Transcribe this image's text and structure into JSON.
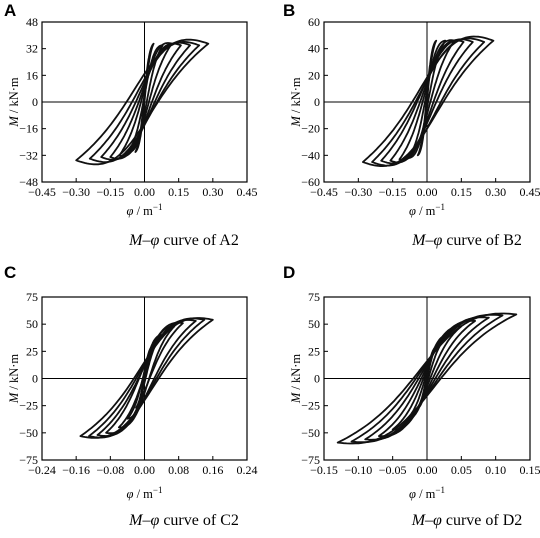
{
  "chart_data": [
    {
      "panel": "A",
      "type": "line",
      "caption": {
        "m": "M",
        "dash": "–",
        "phi": "φ",
        "text": " curve of A2"
      },
      "xlabel": {
        "sym": "φ",
        "unit": " / m",
        "sup": "−1"
      },
      "ylabel": {
        "sym": "M",
        "unit": " / kN·m"
      },
      "xlim": [
        -0.45,
        0.45
      ],
      "ylim": [
        -48,
        48
      ],
      "xticks": [
        -0.45,
        -0.3,
        -0.15,
        0.0,
        0.15,
        0.3,
        0.45
      ],
      "xtick_labels": [
        "−0.45",
        "−0.30",
        "−0.15",
        "0.00",
        "0.15",
        "0.30",
        "0.45"
      ],
      "yticks": [
        48,
        32,
        16,
        0,
        -16,
        -32,
        -48
      ],
      "ytick_labels": [
        "48",
        "32",
        "16",
        "0",
        "−16",
        "−32",
        "−48"
      ],
      "loops": [
        {
          "phi_max": 0.04,
          "phi_min": -0.04,
          "m_max": 35,
          "m_min": -30,
          "width": 4
        },
        {
          "phi_max": 0.08,
          "phi_min": -0.07,
          "m_max": 34,
          "m_min": -30,
          "width": 10
        },
        {
          "phi_max": 0.12,
          "phi_min": -0.11,
          "m_max": 35,
          "m_min": -32,
          "width": 16
        },
        {
          "phi_max": 0.16,
          "phi_min": -0.15,
          "m_max": 34,
          "m_min": -33,
          "width": 20
        },
        {
          "phi_max": 0.2,
          "phi_min": -0.19,
          "m_max": 34,
          "m_min": -33,
          "width": 23
        },
        {
          "phi_max": 0.24,
          "phi_min": -0.24,
          "m_max": 34,
          "m_min": -34,
          "width": 25
        },
        {
          "phi_max": 0.28,
          "phi_min": -0.3,
          "m_max": 35,
          "m_min": -35,
          "width": 27
        }
      ]
    },
    {
      "panel": "B",
      "type": "line",
      "caption": {
        "m": "M",
        "dash": "–",
        "phi": "φ",
        "text": " curve of B2"
      },
      "xlabel": {
        "sym": "φ",
        "unit": " / m",
        "sup": "−1"
      },
      "ylabel": {
        "sym": "M",
        "unit": " / kN·m"
      },
      "xlim": [
        -0.45,
        0.45
      ],
      "ylim": [
        -60,
        60
      ],
      "xticks": [
        -0.45,
        -0.3,
        -0.15,
        0.0,
        0.15,
        0.3,
        0.45
      ],
      "xtick_labels": [
        "−0.45",
        "−0.30",
        "−0.15",
        "0.00",
        "0.15",
        "0.30",
        "0.45"
      ],
      "yticks": [
        60,
        40,
        20,
        0,
        -20,
        -40,
        -60
      ],
      "ytick_labels": [
        "60",
        "40",
        "20",
        "0",
        "−20",
        "−40",
        "−60"
      ],
      "loops": [
        {
          "phi_max": 0.04,
          "phi_min": -0.04,
          "m_max": 46,
          "m_min": -40,
          "width": 5
        },
        {
          "phi_max": 0.08,
          "phi_min": -0.08,
          "m_max": 46,
          "m_min": -42,
          "width": 12
        },
        {
          "phi_max": 0.12,
          "phi_min": -0.12,
          "m_max": 46,
          "m_min": -43,
          "width": 20
        },
        {
          "phi_max": 0.16,
          "phi_min": -0.16,
          "m_max": 45,
          "m_min": -44,
          "width": 26
        },
        {
          "phi_max": 0.2,
          "phi_min": -0.2,
          "m_max": 45,
          "m_min": -44,
          "width": 30
        },
        {
          "phi_max": 0.25,
          "phi_min": -0.24,
          "m_max": 45,
          "m_min": -45,
          "width": 33
        },
        {
          "phi_max": 0.29,
          "phi_min": -0.28,
          "m_max": 46,
          "m_min": -45,
          "width": 35
        }
      ]
    },
    {
      "panel": "C",
      "type": "line",
      "caption": {
        "m": "M",
        "dash": "–",
        "phi": "φ",
        "text": " curve of C2"
      },
      "xlabel": {
        "sym": "φ",
        "unit": " / m",
        "sup": "−1"
      },
      "ylabel": {
        "sym": "M",
        "unit": " / kN·m"
      },
      "xlim": [
        -0.24,
        0.24
      ],
      "ylim": [
        -75,
        75
      ],
      "xticks": [
        -0.24,
        -0.16,
        -0.08,
        0.0,
        0.08,
        0.16,
        0.24
      ],
      "xtick_labels": [
        "−0.24",
        "−0.16",
        "−0.08",
        "0.00",
        "0.08",
        "0.16",
        "0.24"
      ],
      "yticks": [
        75,
        50,
        25,
        0,
        -25,
        -50,
        -75
      ],
      "ytick_labels": [
        "75",
        "50",
        "25",
        "0",
        "−25",
        "−50",
        "−75"
      ],
      "loops": [
        {
          "phi_max": 0.02,
          "phi_min": -0.02,
          "m_max": 30,
          "m_min": -27,
          "width": 5
        },
        {
          "phi_max": 0.04,
          "phi_min": -0.04,
          "m_max": 40,
          "m_min": -37,
          "width": 10
        },
        {
          "phi_max": 0.07,
          "phi_min": -0.06,
          "m_max": 48,
          "m_min": -45,
          "width": 16
        },
        {
          "phi_max": 0.09,
          "phi_min": -0.09,
          "m_max": 51,
          "m_min": -50,
          "width": 22
        },
        {
          "phi_max": 0.12,
          "phi_min": -0.11,
          "m_max": 53,
          "m_min": -52,
          "width": 27
        },
        {
          "phi_max": 0.14,
          "phi_min": -0.13,
          "m_max": 54,
          "m_min": -53,
          "width": 30
        },
        {
          "phi_max": 0.16,
          "phi_min": -0.15,
          "m_max": 54,
          "m_min": -53,
          "width": 32
        }
      ]
    },
    {
      "panel": "D",
      "type": "line",
      "caption": {
        "m": "M",
        "dash": "–",
        "phi": "φ",
        "text": " curve of D2"
      },
      "xlabel": {
        "sym": "φ",
        "unit": " / m",
        "sup": "−1"
      },
      "ylabel": {
        "sym": "M",
        "unit": " / kN·m"
      },
      "xlim": [
        -0.15,
        0.15
      ],
      "ylim": [
        -75,
        75
      ],
      "xticks": [
        -0.15,
        -0.1,
        -0.05,
        0.0,
        0.05,
        0.1,
        0.15
      ],
      "xtick_labels": [
        "−0.15",
        "−0.10",
        "−0.05",
        "0.00",
        "0.05",
        "0.10",
        "0.15"
      ],
      "yticks": [
        75,
        50,
        25,
        0,
        -25,
        -50,
        -75
      ],
      "ytick_labels": [
        "75",
        "50",
        "25",
        "0",
        "−25",
        "−50",
        "−75"
      ],
      "loops": [
        {
          "phi_max": 0.015,
          "phi_min": -0.015,
          "m_max": 30,
          "m_min": -28,
          "width": 5
        },
        {
          "phi_max": 0.03,
          "phi_min": -0.03,
          "m_max": 40,
          "m_min": -38,
          "width": 10
        },
        {
          "phi_max": 0.05,
          "phi_min": -0.05,
          "m_max": 48,
          "m_min": -47,
          "width": 15
        },
        {
          "phi_max": 0.07,
          "phi_min": -0.07,
          "m_max": 53,
          "m_min": -53,
          "width": 20
        },
        {
          "phi_max": 0.09,
          "phi_min": -0.09,
          "m_max": 56,
          "m_min": -56,
          "width": 24
        },
        {
          "phi_max": 0.11,
          "phi_min": -0.11,
          "m_max": 58,
          "m_min": -58,
          "width": 27
        },
        {
          "phi_max": 0.13,
          "phi_min": -0.13,
          "m_max": 59,
          "m_min": -59,
          "width": 29
        }
      ]
    }
  ]
}
